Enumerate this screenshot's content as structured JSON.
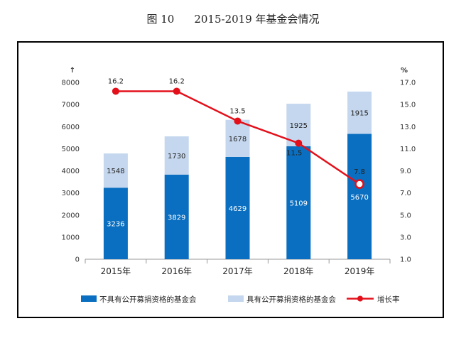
{
  "figure": {
    "number": "图 10",
    "caption": "2015-2019 年基金会情况"
  },
  "colors": {
    "dark": "#0a6fc0",
    "light": "#c5d7ee",
    "line": "#e3101b",
    "axis": "#999999"
  },
  "chart_data": {
    "type": "bar",
    "stacked": true,
    "categories": [
      "2015年",
      "2016年",
      "2017年",
      "2018年",
      "2019年"
    ],
    "series": [
      {
        "name": "不具有公开募捐资格的基金会",
        "values": [
          3236,
          3829,
          4629,
          5109,
          5670
        ]
      },
      {
        "name": "具有公开募捐资格的基金会",
        "values": [
          1548,
          1730,
          1678,
          1925,
          1915
        ]
      }
    ],
    "line_series": {
      "name": "增长率",
      "values": [
        16.2,
        16.2,
        13.5,
        11.5,
        7.8
      ]
    },
    "ylabel_left": "↑",
    "ylabel_right": "%",
    "ylim": [
      0,
      8000
    ],
    "y_ticks": [
      0,
      1000,
      2000,
      3000,
      4000,
      5000,
      6000,
      7000,
      8000
    ],
    "y2lim": [
      1.0,
      17.0
    ],
    "y2_ticks": [
      "1.0",
      "3.0",
      "5.0",
      "7.0",
      "9.0",
      "11.0",
      "13.0",
      "15.0",
      "17.0"
    ],
    "legend_position": "bottom",
    "grid": false
  }
}
